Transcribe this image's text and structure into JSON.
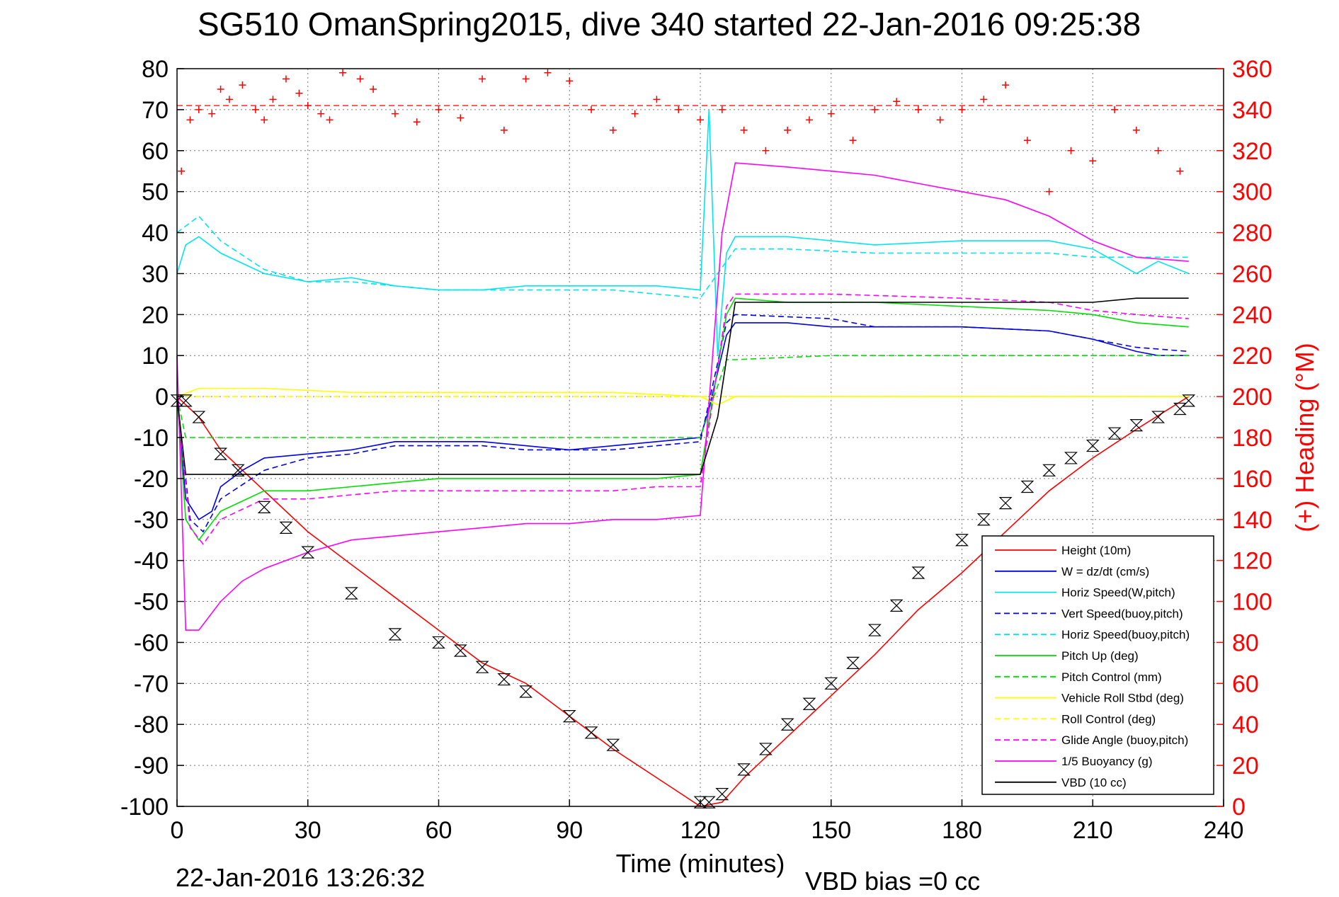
{
  "chart_data": {
    "type": "line",
    "title": "SG510 OmanSpring2015, dive 340 started 22-Jan-2016 09:25:38",
    "xlabel": "Time (minutes)",
    "ylabel_right": "(+) Heading (°M)",
    "footer_left": "22-Jan-2016 13:26:32",
    "footer_right": "VBD bias =0 cc",
    "xlim": [
      0,
      240
    ],
    "ylim": [
      -100,
      80
    ],
    "ylim_right": [
      0,
      360
    ],
    "x_ticks": [
      "0",
      "30",
      "60",
      "90",
      "120",
      "150",
      "180",
      "210",
      "240"
    ],
    "y_ticks": [
      "80",
      "70",
      "60",
      "50",
      "40",
      "30",
      "20",
      "10",
      "0",
      "-10",
      "-20",
      "-30",
      "-40",
      "-50",
      "-60",
      "-70",
      "-80",
      "-90",
      "-100"
    ],
    "y_ticks_right": [
      "360",
      "340",
      "320",
      "300",
      "280",
      "260",
      "240",
      "220",
      "200",
      "180",
      "160",
      "140",
      "120",
      "100",
      "80",
      "60",
      "40",
      "20",
      "0"
    ],
    "grid": true,
    "legend_position": "bottom-right",
    "colors": {
      "red": "#ff0000",
      "blue": "#0000e6",
      "cyan": "#00e5ee",
      "green": "#00dd00",
      "yellow": "#ffff00",
      "magenta": "#ff00ff",
      "black": "#000000"
    },
    "series": [
      {
        "name": "Height (10m)",
        "color": "red",
        "dash": false,
        "x": [
          0,
          5,
          10,
          20,
          30,
          40,
          50,
          60,
          70,
          80,
          90,
          100,
          110,
          120,
          125,
          130,
          140,
          150,
          160,
          170,
          180,
          190,
          200,
          210,
          220,
          232
        ],
        "y": [
          0,
          -5,
          -13,
          -23,
          -33,
          -41,
          -49,
          -57,
          -65,
          -70,
          -78,
          -86,
          -93,
          -100,
          -99,
          -93,
          -83,
          -73,
          -63,
          -52,
          -43,
          -33,
          -23,
          -15,
          -8,
          0
        ]
      },
      {
        "name": "W = dz/dt (cm/s)",
        "color": "blue",
        "dash": false,
        "x": [
          0,
          2,
          5,
          8,
          10,
          15,
          20,
          30,
          40,
          50,
          60,
          70,
          80,
          90,
          100,
          110,
          120,
          122,
          126,
          128,
          140,
          150,
          160,
          180,
          200,
          210,
          220,
          225,
          232
        ],
        "y": [
          0,
          -25,
          -30,
          -28,
          -22,
          -18,
          -15,
          -14,
          -13,
          -11,
          -11,
          -11,
          -12,
          -13,
          -12,
          -11,
          -10,
          -3,
          15,
          18,
          18,
          17,
          17,
          17,
          16,
          14,
          11,
          10,
          10
        ]
      },
      {
        "name": "Horiz Speed(W,pitch)",
        "color": "cyan",
        "dash": false,
        "x": [
          0,
          2,
          5,
          10,
          20,
          30,
          40,
          50,
          60,
          70,
          80,
          90,
          100,
          110,
          120,
          122,
          124,
          126,
          128,
          140,
          150,
          160,
          180,
          200,
          210,
          220,
          225,
          232
        ],
        "y": [
          30,
          37,
          39,
          35,
          30,
          28,
          29,
          27,
          26,
          26,
          27,
          27,
          27,
          27,
          26,
          70,
          10,
          35,
          39,
          39,
          38,
          37,
          38,
          38,
          36,
          30,
          33,
          30
        ]
      },
      {
        "name": "Vert Speed(buoy,pitch)",
        "color": "blue",
        "dash": true,
        "x": [
          0,
          3,
          6,
          10,
          20,
          30,
          40,
          50,
          60,
          70,
          80,
          90,
          100,
          110,
          120,
          126,
          128,
          150,
          160,
          180,
          200,
          210,
          220,
          232
        ],
        "y": [
          0,
          -30,
          -33,
          -25,
          -18,
          -15,
          -14,
          -12,
          -12,
          -12,
          -13,
          -13,
          -13,
          -12,
          -11,
          18,
          20,
          19,
          17,
          17,
          16,
          14,
          12,
          11
        ]
      },
      {
        "name": "Horiz Speed(buoy,pitch)",
        "color": "cyan",
        "dash": true,
        "x": [
          0,
          5,
          10,
          20,
          30,
          40,
          50,
          60,
          70,
          80,
          90,
          100,
          110,
          120,
          128,
          140,
          160,
          180,
          200,
          210,
          220,
          232
        ],
        "y": [
          40,
          44,
          38,
          31,
          28,
          28,
          27,
          26,
          26,
          26,
          26,
          26,
          25,
          24,
          36,
          36,
          35,
          35,
          35,
          34,
          34,
          34
        ]
      },
      {
        "name": "Pitch Up (deg)",
        "color": "green",
        "dash": false,
        "x": [
          0,
          2,
          5,
          10,
          20,
          30,
          40,
          50,
          60,
          70,
          80,
          90,
          100,
          110,
          120,
          126,
          128,
          140,
          160,
          180,
          200,
          210,
          220,
          232
        ],
        "y": [
          0,
          -30,
          -35,
          -28,
          -23,
          -23,
          -22,
          -21,
          -20,
          -20,
          -20,
          -20,
          -20,
          -20,
          -19,
          20,
          24,
          23,
          23,
          22,
          21,
          20,
          18,
          17
        ]
      },
      {
        "name": "Pitch Control (mm)",
        "color": "green",
        "dash": true,
        "x": [
          0,
          2,
          10,
          30,
          60,
          90,
          120,
          126,
          128,
          150,
          180,
          210,
          232
        ],
        "y": [
          0,
          -10,
          -10,
          -10,
          -10,
          -10,
          -10,
          9,
          9,
          10,
          10,
          10,
          10
        ]
      },
      {
        "name": "Vehicle Roll Stbd (deg)",
        "color": "yellow",
        "dash": false,
        "x": [
          0,
          5,
          10,
          20,
          40,
          60,
          80,
          100,
          120,
          124,
          128,
          140,
          160,
          180,
          200,
          220,
          232
        ],
        "y": [
          0,
          2,
          2,
          2,
          1,
          1,
          1,
          1,
          0,
          -2,
          0,
          0,
          0,
          0,
          0,
          0,
          0
        ]
      },
      {
        "name": "Roll Control (deg)",
        "color": "yellow",
        "dash": true,
        "x": [
          0,
          5,
          30,
          60,
          90,
          120,
          128,
          150,
          180,
          210,
          232
        ],
        "y": [
          0,
          0,
          0,
          0,
          0,
          0,
          0,
          0,
          0,
          0,
          0
        ]
      },
      {
        "name": "Glide Angle (buoy,pitch)",
        "color": "magenta",
        "dash": true,
        "x": [
          0,
          3,
          6,
          10,
          20,
          30,
          40,
          50,
          60,
          70,
          80,
          90,
          100,
          110,
          120,
          126,
          128,
          150,
          180,
          200,
          210,
          220,
          232
        ],
        "y": [
          0,
          -32,
          -36,
          -30,
          -25,
          -25,
          -24,
          -23,
          -23,
          -23,
          -23,
          -23,
          -23,
          -22,
          -22,
          22,
          25,
          25,
          24,
          23,
          21,
          20,
          19
        ]
      },
      {
        "name": "1/5 Buoyancy (g)",
        "color": "magenta",
        "dash": false,
        "x": [
          0,
          2,
          5,
          10,
          15,
          20,
          30,
          40,
          50,
          60,
          70,
          80,
          90,
          100,
          110,
          120,
          125,
          128,
          140,
          150,
          160,
          170,
          180,
          190,
          200,
          210,
          220,
          232
        ],
        "y": [
          10,
          -57,
          -57,
          -50,
          -45,
          -42,
          -38,
          -35,
          -34,
          -33,
          -32,
          -31,
          -31,
          -30,
          -30,
          -29,
          40,
          57,
          56,
          55,
          54,
          52,
          50,
          48,
          44,
          38,
          34,
          33
        ]
      },
      {
        "name": "VBD (10 cc)",
        "color": "black",
        "dash": false,
        "x": [
          0,
          2,
          30,
          60,
          90,
          120,
          124,
          128,
          150,
          180,
          200,
          210,
          220,
          232
        ],
        "y": [
          0,
          -19,
          -19,
          -19,
          -19,
          -19,
          -5,
          23,
          23,
          23,
          23,
          23,
          24,
          24
        ]
      }
    ],
    "heading_points": {
      "name": "(+) Heading (°M)",
      "color": "red",
      "x": [
        1,
        3,
        5,
        8,
        10,
        12,
        15,
        18,
        20,
        22,
        25,
        28,
        30,
        33,
        35,
        38,
        42,
        45,
        50,
        55,
        60,
        65,
        70,
        75,
        80,
        85,
        90,
        95,
        100,
        105,
        110,
        115,
        120,
        125,
        130,
        135,
        140,
        145,
        150,
        155,
        160,
        165,
        170,
        175,
        180,
        185,
        190,
        195,
        200,
        205,
        210,
        215,
        220,
        225,
        230
      ],
      "y": [
        310,
        335,
        340,
        338,
        350,
        345,
        352,
        340,
        335,
        345,
        355,
        348,
        342,
        338,
        335,
        358,
        355,
        350,
        338,
        334,
        340,
        336,
        355,
        330,
        355,
        358,
        354,
        340,
        330,
        338,
        345,
        340,
        335,
        340,
        330,
        320,
        330,
        335,
        338,
        325,
        340,
        344,
        340,
        335,
        340,
        345,
        352,
        325,
        300,
        320,
        315,
        340,
        330,
        320,
        310
      ]
    },
    "heading_reference": 342,
    "markers": {
      "symbol": "hourglass",
      "x": [
        0,
        2,
        5,
        10,
        14,
        20,
        25,
        30,
        40,
        50,
        60,
        65,
        70,
        75,
        80,
        90,
        95,
        100,
        120,
        122,
        125,
        130,
        135,
        140,
        145,
        150,
        155,
        160,
        165,
        170,
        180,
        185,
        190,
        195,
        200,
        205,
        210,
        215,
        220,
        225,
        230,
        232
      ],
      "y": [
        -1,
        -1,
        -5,
        -14,
        -18,
        -27,
        -32,
        -38,
        -48,
        -58,
        -60,
        -62,
        -66,
        -69,
        -72,
        -78,
        -82,
        -85,
        -99,
        -99,
        -97,
        -91,
        -86,
        -80,
        -75,
        -70,
        -65,
        -57,
        -51,
        -43,
        -35,
        -30,
        -26,
        -22,
        -18,
        -15,
        -12,
        -9,
        -7,
        -5,
        -3,
        -1
      ]
    }
  }
}
